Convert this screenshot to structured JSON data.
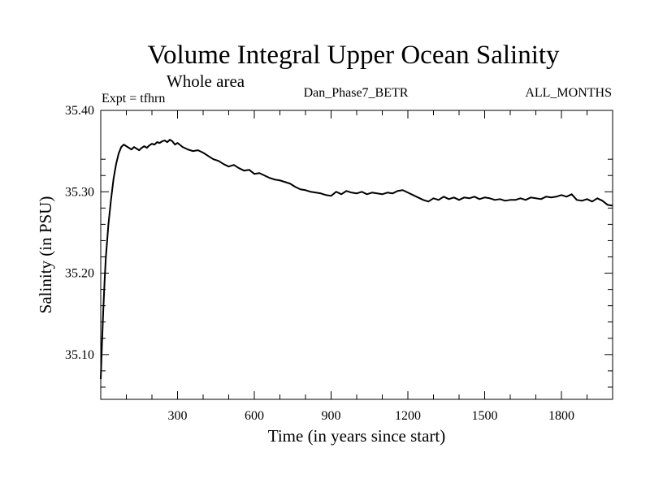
{
  "chart_data": {
    "type": "line",
    "title": "Volume Integral Upper Ocean Salinity",
    "subtitle": "Whole area",
    "experiment_label": "Expt = tfhrn",
    "run_label": "Dan_Phase7_BETR",
    "period_label": "ALL_MONTHS",
    "xlabel": "Time (in years since start)",
    "ylabel": "Salinity (in PSU)",
    "xlim": [
      0,
      2000
    ],
    "ylim": [
      35.045,
      35.4
    ],
    "x_ticks": [
      300,
      600,
      900,
      1200,
      1500,
      1800
    ],
    "x_tick_labels": [
      "300",
      "600",
      "900",
      "1200",
      "1500",
      "1800"
    ],
    "y_ticks": [
      35.1,
      35.2,
      35.3,
      35.4
    ],
    "y_tick_labels": [
      "35.10",
      "35.20",
      "35.30",
      "35.40"
    ],
    "grid": false,
    "line_color": "#000000",
    "series": [
      {
        "name": "Salinity",
        "x": [
          0,
          5,
          10,
          15,
          20,
          30,
          40,
          50,
          60,
          70,
          80,
          90,
          100,
          110,
          120,
          130,
          140,
          150,
          160,
          170,
          180,
          190,
          200,
          210,
          220,
          230,
          240,
          250,
          260,
          270,
          280,
          290,
          300,
          320,
          340,
          360,
          380,
          400,
          420,
          440,
          460,
          480,
          500,
          520,
          540,
          560,
          580,
          600,
          620,
          640,
          660,
          680,
          700,
          720,
          740,
          760,
          780,
          800,
          820,
          840,
          860,
          880,
          900,
          920,
          940,
          960,
          980,
          1000,
          1020,
          1040,
          1060,
          1080,
          1100,
          1120,
          1140,
          1160,
          1180,
          1200,
          1220,
          1240,
          1260,
          1280,
          1300,
          1320,
          1340,
          1360,
          1380,
          1400,
          1420,
          1440,
          1460,
          1480,
          1500,
          1520,
          1540,
          1560,
          1580,
          1600,
          1620,
          1640,
          1660,
          1680,
          1700,
          1720,
          1740,
          1760,
          1780,
          1800,
          1820,
          1840,
          1860,
          1880,
          1900,
          1920,
          1940,
          1960,
          1980,
          2000
        ],
        "values": [
          35.07,
          35.115,
          35.155,
          35.19,
          35.22,
          35.26,
          35.29,
          35.316,
          35.334,
          35.347,
          35.355,
          35.358,
          35.356,
          35.354,
          35.352,
          35.355,
          35.353,
          35.351,
          35.354,
          35.356,
          35.354,
          35.357,
          35.359,
          35.358,
          35.361,
          35.36,
          35.362,
          35.363,
          35.361,
          35.364,
          35.362,
          35.358,
          35.36,
          35.355,
          35.352,
          35.35,
          35.351,
          35.348,
          35.344,
          35.34,
          35.338,
          35.334,
          35.331,
          35.333,
          35.329,
          35.326,
          35.327,
          35.322,
          35.323,
          35.32,
          35.317,
          35.315,
          35.314,
          35.312,
          35.31,
          35.306,
          35.303,
          35.302,
          35.3,
          35.299,
          35.298,
          35.296,
          35.295,
          35.3,
          35.297,
          35.301,
          35.299,
          35.298,
          35.3,
          35.297,
          35.299,
          35.298,
          35.297,
          35.299,
          35.298,
          35.301,
          35.302,
          35.299,
          35.296,
          35.293,
          35.29,
          35.288,
          35.292,
          35.29,
          35.294,
          35.291,
          35.293,
          35.29,
          35.293,
          35.292,
          35.294,
          35.291,
          35.293,
          35.292,
          35.29,
          35.291,
          35.289,
          35.29,
          35.29,
          35.292,
          35.29,
          35.293,
          35.292,
          35.291,
          35.294,
          35.293,
          35.294,
          35.296,
          35.294,
          35.297,
          35.29,
          35.289,
          35.291,
          35.288,
          35.292,
          35.289,
          35.284,
          35.283
        ]
      }
    ]
  }
}
